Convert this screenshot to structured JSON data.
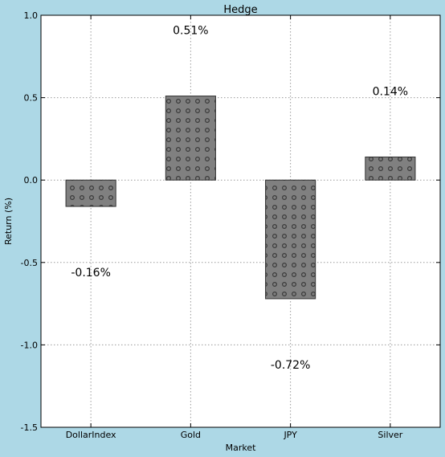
{
  "chart_data": {
    "type": "bar",
    "title": "Hedge",
    "xlabel": "Market",
    "ylabel": "Return (%)",
    "categories": [
      "DollarIndex",
      "Gold",
      "JPY",
      "Silver"
    ],
    "values": [
      -0.16,
      0.51,
      -0.72,
      0.14
    ],
    "data_labels": [
      "-0.16%",
      "0.51%",
      "-0.72%",
      "0.14%"
    ],
    "ylim": [
      -1.5,
      1.0
    ],
    "yticks": [
      "-1.5",
      "-1.0",
      "-0.5",
      "0.0",
      "0.5",
      "1.0"
    ],
    "grid": true,
    "bar_color": "#808080",
    "background_color": "#add8e6"
  }
}
